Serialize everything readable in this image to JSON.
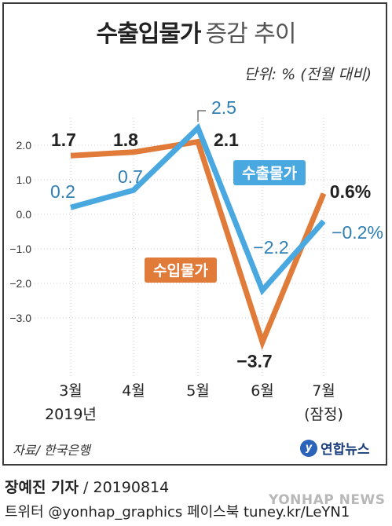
{
  "title_bold": "수출입물가",
  "title_light": "증감 추이",
  "unit": "단위: % (전월 대비)",
  "source": "자료/ 한국은행",
  "logo": "연합뉴스",
  "credit_author": "장예진 기자",
  "credit_date": " / 20190814",
  "credit_social": "트위터 @yonhap_graphics  페이스북 tuney.kr/LeYN1",
  "watermark": "YONHAP NEWS",
  "colors": {
    "export": "#4aa8e0",
    "import": "#e07b39",
    "text": "#222222",
    "export_label": "#2f7fb4",
    "grid": "#c8c8c8"
  },
  "chart_data": {
    "type": "line",
    "categories": [
      "3월",
      "4월",
      "5월",
      "6월",
      "7월"
    ],
    "category_sublabels": [
      "2019년",
      "",
      "",
      "",
      "(잠정)"
    ],
    "yticks": [
      "2.0",
      "1.0",
      "0.0",
      "-1.0",
      "-2.0",
      "-3.0"
    ],
    "ylim": [
      -3.9,
      2.7
    ],
    "series": [
      {
        "name": "수출물가",
        "values": [
          0.2,
          0.7,
          2.5,
          -2.2,
          -0.2
        ],
        "labels": [
          "0.2",
          "0.7",
          "2.5",
          "−2.2",
          "−0.2%"
        ]
      },
      {
        "name": "수입물가",
        "values": [
          1.7,
          1.8,
          2.1,
          -3.7,
          0.6
        ],
        "labels": [
          "1.7",
          "1.8",
          "2.1",
          "−3.7",
          "0.6%"
        ]
      }
    ]
  }
}
